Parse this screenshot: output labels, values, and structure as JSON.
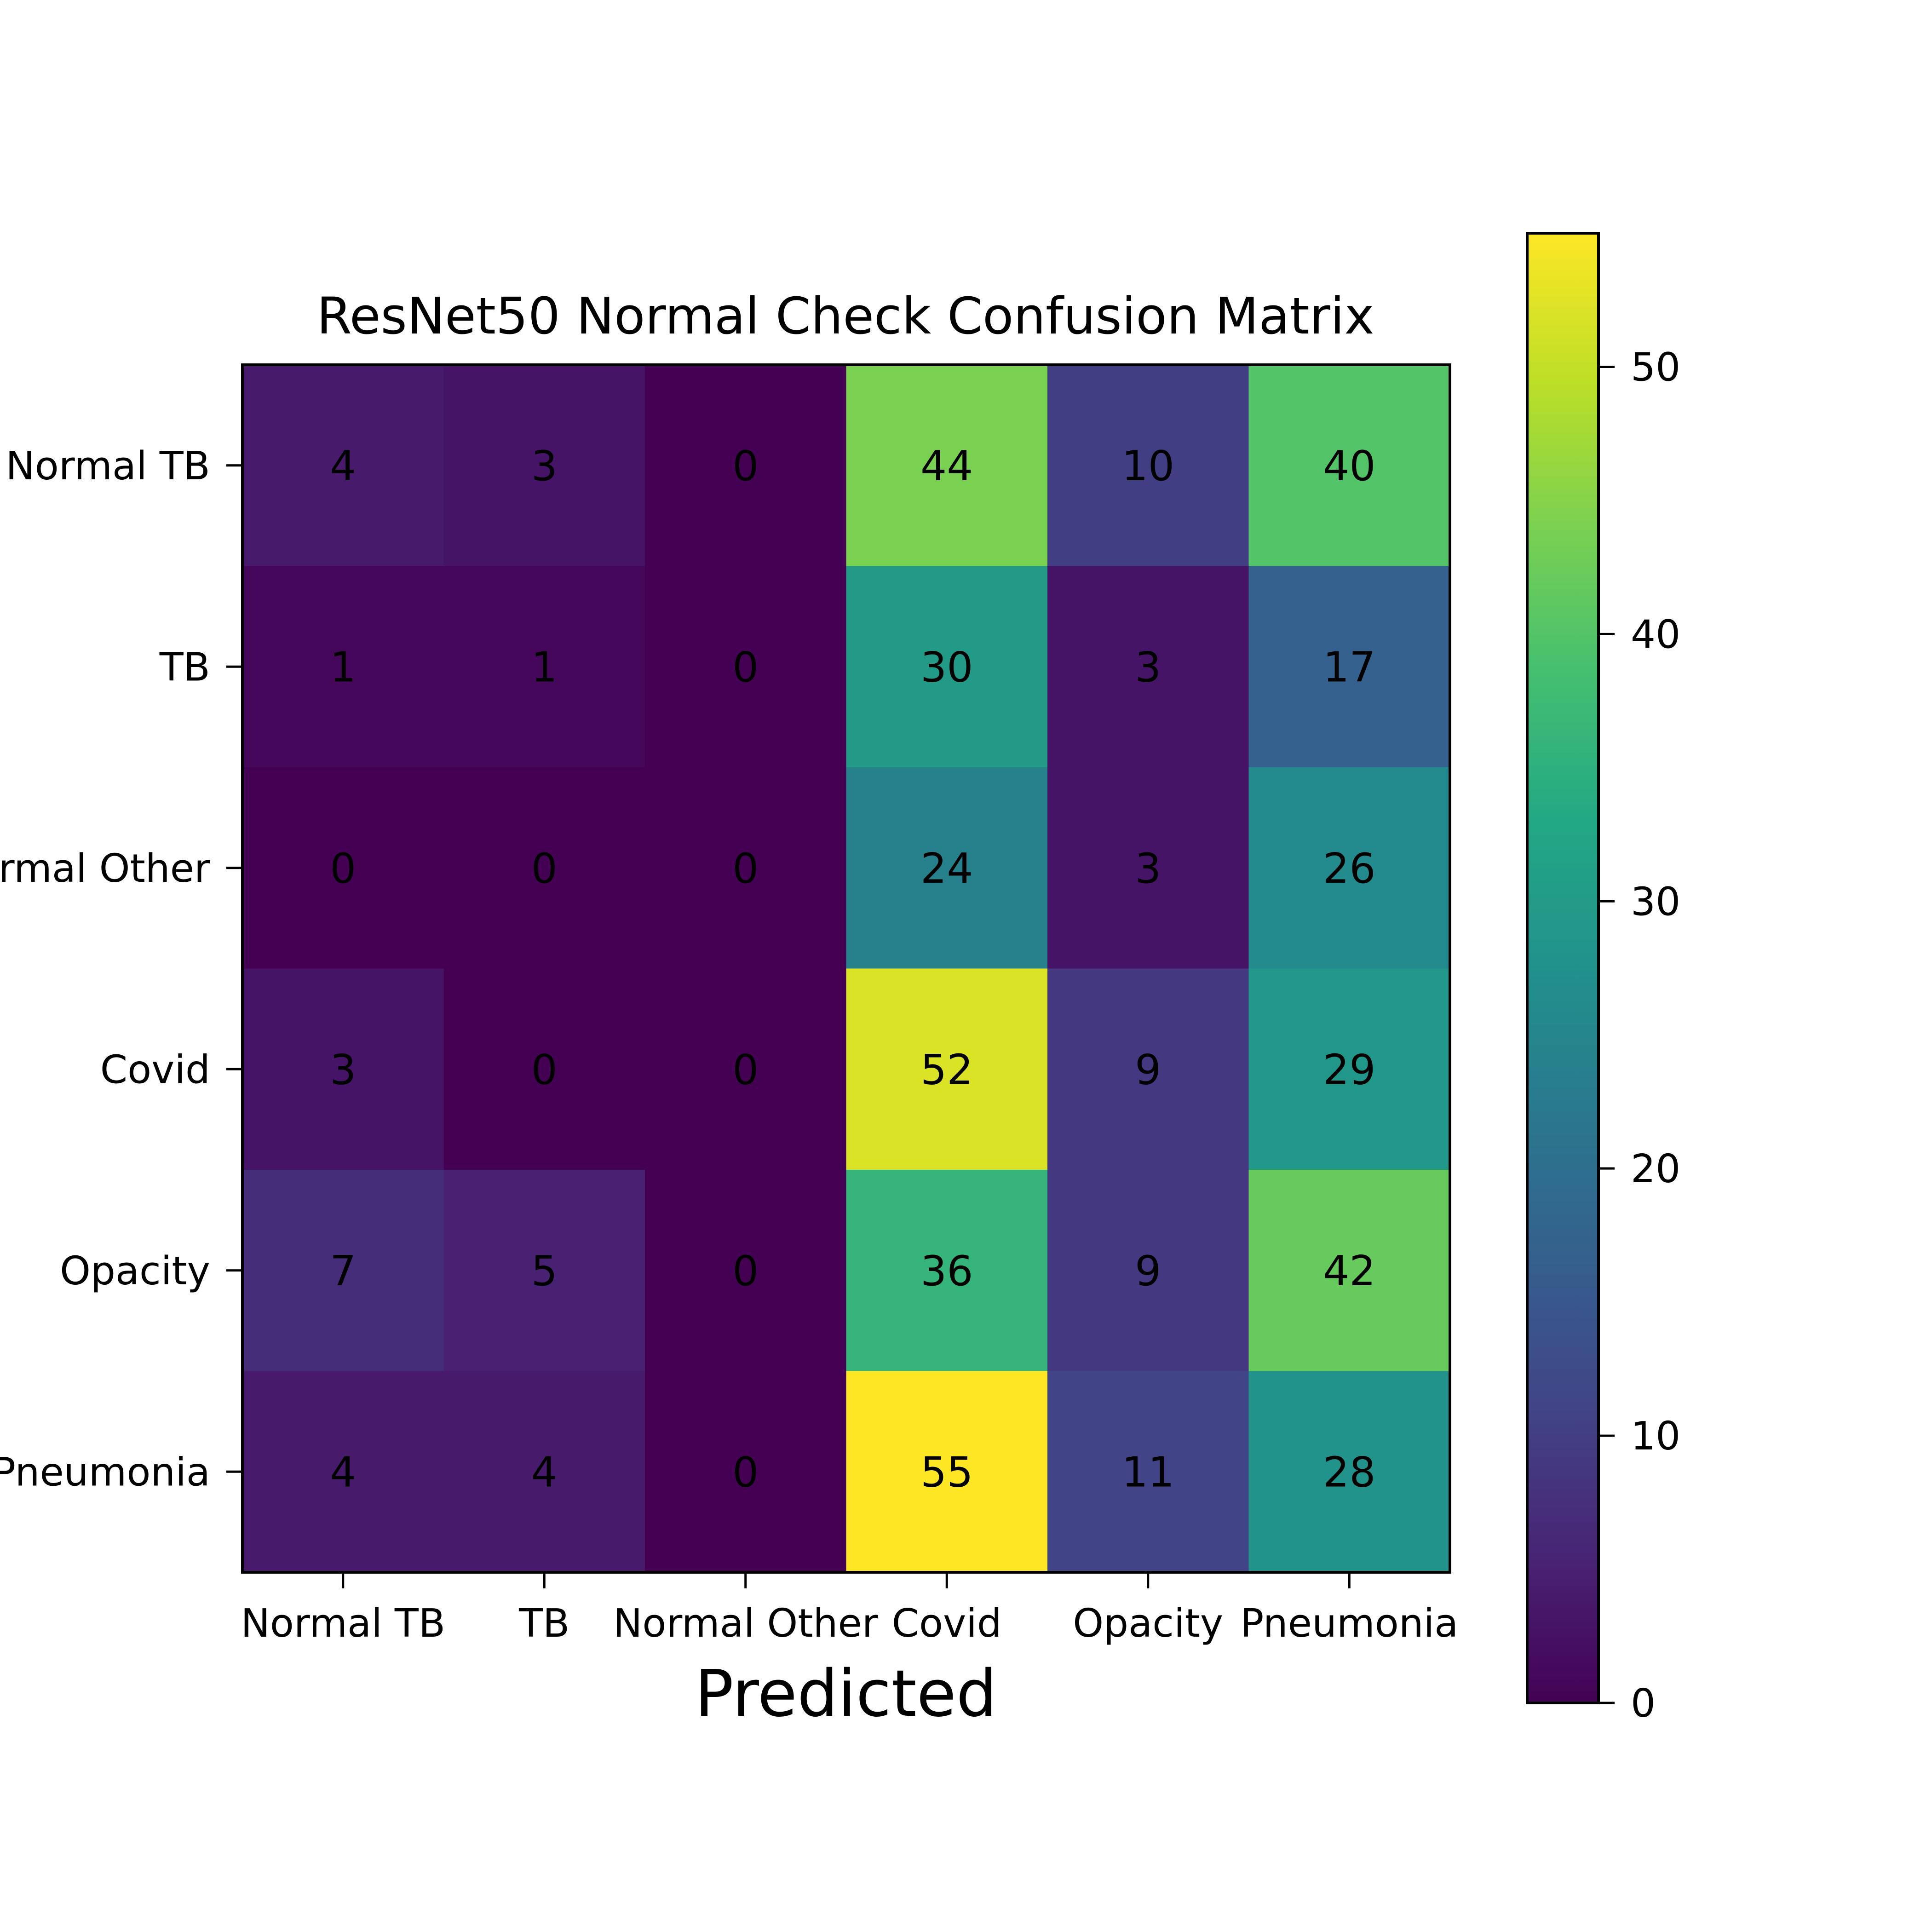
{
  "chart_data": {
    "type": "heatmap",
    "title": "ResNet50 Normal Check Confusion Matrix",
    "xlabel": "Predicted",
    "ylabel": "",
    "row_labels": [
      "Normal TB",
      "TB",
      "Normal Other",
      "Covid",
      "Opacity",
      "Pneumonia"
    ],
    "column_labels": [
      "Normal TB",
      "TB",
      "Normal Other",
      "Covid",
      "Opacity",
      "Pneumonia"
    ],
    "values": [
      [
        4,
        3,
        0,
        44,
        10,
        40
      ],
      [
        1,
        1,
        0,
        30,
        3,
        17
      ],
      [
        0,
        0,
        0,
        24,
        3,
        26
      ],
      [
        3,
        0,
        0,
        52,
        9,
        29
      ],
      [
        7,
        5,
        0,
        36,
        9,
        42
      ],
      [
        4,
        4,
        0,
        55,
        11,
        28
      ]
    ],
    "colormap": "viridis",
    "color_range": [
      0,
      55
    ],
    "colorbar": {
      "ticks": [
        0,
        10,
        20,
        30,
        40,
        50
      ],
      "tick_labels": [
        "0",
        "10",
        "20",
        "30",
        "40",
        "50"
      ],
      "placement": "right"
    },
    "annotation_colors": {
      "dark_cell": "#fde725",
      "light_cell": "#440154"
    },
    "grid": false
  }
}
